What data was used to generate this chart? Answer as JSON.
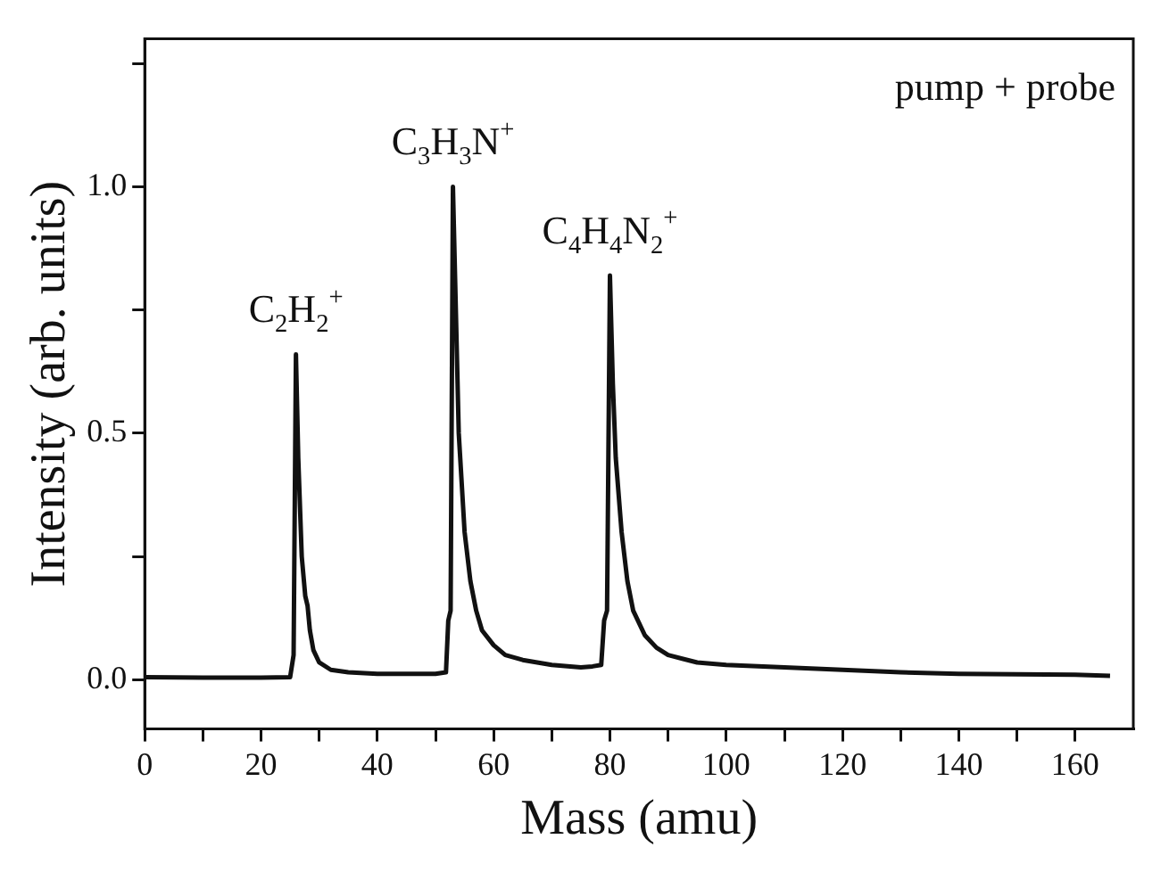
{
  "chart_data": {
    "type": "line",
    "xlabel": "Mass (amu)",
    "ylabel": "Intensity (arb. units)",
    "xlim": [
      0,
      170
    ],
    "ylim": [
      -0.1,
      1.3
    ],
    "xticks": [
      0,
      {
        "value": 10,
        "label": null
      },
      20,
      {
        "value": 30,
        "label": null
      },
      40,
      {
        "value": 50,
        "label": null
      },
      60,
      {
        "value": 70,
        "label": null
      },
      80,
      {
        "value": 90,
        "label": null
      },
      100,
      {
        "value": 110,
        "label": null
      },
      120,
      {
        "value": 130,
        "label": null
      },
      140,
      {
        "value": 150,
        "label": null
      },
      160
    ],
    "yticks": [
      {
        "value": 0,
        "label": "0.0"
      },
      {
        "value": 0.25,
        "label": null
      },
      {
        "value": 0.5,
        "label": "0.5"
      },
      {
        "value": 0.75,
        "label": null
      },
      {
        "value": 1,
        "label": "1.0"
      },
      {
        "value": 1.25,
        "label": null
      }
    ],
    "grid": false,
    "legend": false,
    "marker": "none",
    "line_style": "solid",
    "series": [
      {
        "color": "#111111",
        "x": [
          0,
          10,
          20,
          25,
          25.6,
          26,
          26.4,
          27,
          27.6,
          28,
          28.4,
          29,
          30,
          32,
          35,
          40,
          45,
          50,
          51.8,
          52.2,
          52.6,
          53,
          53.4,
          54,
          55,
          56,
          57,
          58,
          60,
          62,
          65,
          70,
          75,
          77,
          78.5,
          79,
          79.5,
          80,
          80.5,
          81,
          82,
          83,
          84,
          86,
          88,
          90,
          95,
          100,
          110,
          120,
          130,
          140,
          150,
          160,
          166
        ],
        "values": [
          0.005,
          0.004,
          0.004,
          0.005,
          0.05,
          0.66,
          0.45,
          0.25,
          0.17,
          0.15,
          0.1,
          0.06,
          0.035,
          0.02,
          0.015,
          0.012,
          0.012,
          0.012,
          0.015,
          0.12,
          0.14,
          1.0,
          0.8,
          0.5,
          0.3,
          0.2,
          0.14,
          0.1,
          0.07,
          0.05,
          0.04,
          0.03,
          0.025,
          0.027,
          0.03,
          0.12,
          0.14,
          0.82,
          0.6,
          0.45,
          0.3,
          0.2,
          0.14,
          0.09,
          0.065,
          0.05,
          0.035,
          0.03,
          0.025,
          0.02,
          0.015,
          0.012,
          0.011,
          0.01,
          0.008
        ]
      }
    ],
    "annotations": [
      {
        "text": "C$_{2}$H$_{2}$$^{+}$",
        "x": 26,
        "y": 0.66
      },
      {
        "text": "C$_{3}$H$_{3}$N$^{+}$",
        "x": 53,
        "y": 1.0
      },
      {
        "text": "C$_{4}$H$_{4}$N$_{2}$$^{+}$",
        "x": 80,
        "y": 0.82
      },
      "pump + probe"
    ]
  }
}
